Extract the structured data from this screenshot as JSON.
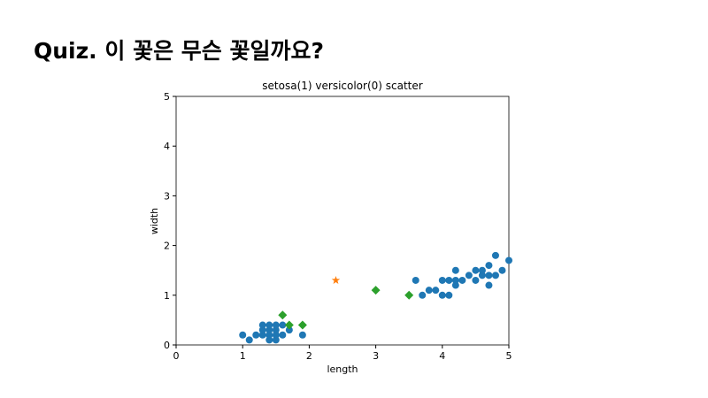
{
  "slide_title": "Quiz. 이 꽃은 무슨 꽃일까요?",
  "chart_data": {
    "type": "scatter",
    "title": "setosa(1) versicolor(0) scatter",
    "x_label": "length",
    "y_label": "width",
    "xlim": [
      0,
      5
    ],
    "ylim": [
      0,
      5
    ],
    "xticks": [
      0,
      1,
      2,
      3,
      4,
      5
    ],
    "yticks": [
      0,
      1,
      2,
      3,
      4,
      5
    ],
    "series": [
      {
        "color": "#1f77b4",
        "marker": "circle",
        "x": [
          1.0,
          1.1,
          1.2,
          1.3,
          1.3,
          1.3,
          1.4,
          1.4,
          1.4,
          1.4,
          1.5,
          1.5,
          1.5,
          1.5,
          1.6,
          1.6,
          1.7,
          1.9,
          3.6,
          3.7,
          3.8,
          3.9,
          4.0,
          4.0,
          4.1,
          4.1,
          4.2,
          4.2,
          4.2,
          4.3,
          4.4,
          4.5,
          4.5,
          4.6,
          4.6,
          4.7,
          4.7,
          4.7,
          4.8,
          4.8,
          4.9,
          5.0
        ],
        "y": [
          0.2,
          0.1,
          0.2,
          0.2,
          0.3,
          0.4,
          0.1,
          0.2,
          0.3,
          0.4,
          0.1,
          0.2,
          0.3,
          0.4,
          0.2,
          0.4,
          0.3,
          0.2,
          1.3,
          1.0,
          1.1,
          1.1,
          1.0,
          1.3,
          1.0,
          1.3,
          1.2,
          1.3,
          1.5,
          1.3,
          1.4,
          1.3,
          1.5,
          1.4,
          1.5,
          1.2,
          1.4,
          1.6,
          1.4,
          1.8,
          1.5,
          1.7
        ]
      },
      {
        "color": "#ff7f0e",
        "marker": "star",
        "x": [
          2.4
        ],
        "y": [
          1.3
        ]
      },
      {
        "color": "#2ca02c",
        "marker": "diamond",
        "x": [
          1.6,
          1.7,
          1.9,
          3.0,
          3.5
        ],
        "y": [
          0.6,
          0.4,
          0.4,
          1.1,
          1.0
        ]
      }
    ]
  }
}
